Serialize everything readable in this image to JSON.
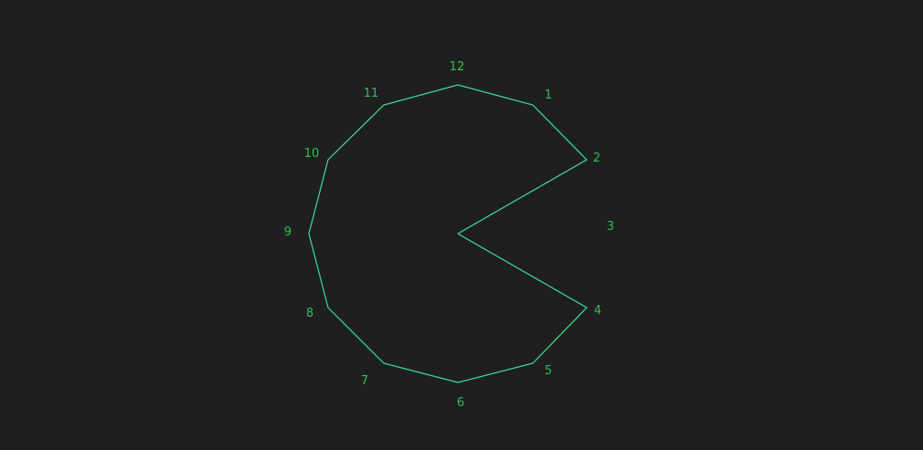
{
  "diagram": {
    "labels": [
      "12",
      "1",
      "2",
      "3",
      "4",
      "5",
      "6",
      "7",
      "8",
      "9",
      "10",
      "11"
    ],
    "colors": {
      "background": "#1f1f22",
      "outline": "#3be28f",
      "labels": "#2ec24a"
    }
  }
}
